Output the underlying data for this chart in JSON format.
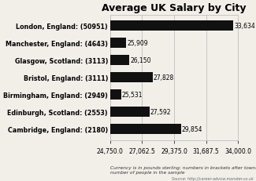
{
  "title": "Average UK Salary by City",
  "categories": [
    "Cambridge, England: (2180)",
    "Edinburgh, Scotland: (2553)",
    "Birmingham, England: (2949)",
    "Bristol, England: (3111)",
    "Glasgow, Scotland: (3113)",
    "Manchester, England: (4643)",
    "London, England: (50951)"
  ],
  "values": [
    29854,
    27592,
    25531,
    27828,
    26150,
    25909,
    33634
  ],
  "bar_color": "#111111",
  "xlim": [
    24750,
    34000
  ],
  "xticks": [
    24750.0,
    27062.5,
    29375.0,
    31687.5,
    34000.0
  ],
  "xtick_labels": [
    "24,750.0",
    "27,062.5",
    "29,375.0",
    "31,687.5",
    "34,000.0"
  ],
  "value_labels": [
    "29,854",
    "27,592",
    "25,531",
    "27,828",
    "26,150",
    "25,909",
    "33,634"
  ],
  "footnote": "Currency is in pounds sterling; numbers in brackets after towns is the\nnumber of people in the sample",
  "source": "Source: http://career-advice.monster.co.uk",
  "background_color": "#f2efe9",
  "grid_color": "#c0c0c0"
}
